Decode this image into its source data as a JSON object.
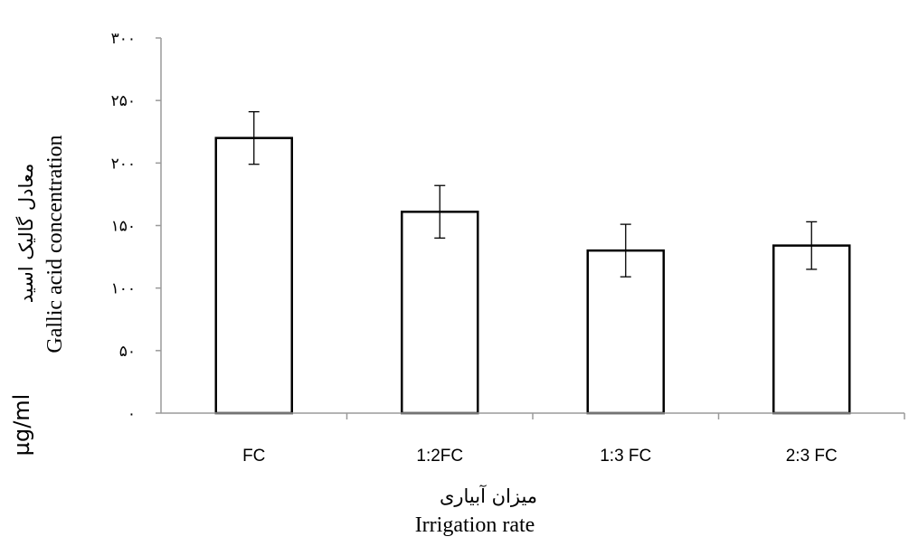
{
  "chart_data": {
    "type": "bar",
    "categories": [
      "FC",
      "1:2FC",
      "1:3 FC",
      "2:3 FC"
    ],
    "values": [
      220,
      161,
      130,
      134
    ],
    "error_bars": [
      21,
      21,
      21,
      19
    ],
    "ylim": [
      0,
      300
    ],
    "yticks": [
      0,
      50,
      100,
      150,
      200,
      250,
      300
    ],
    "ytick_labels": [
      "٠",
      "۵٠",
      "١٠٠",
      "١۵٠",
      "٢٠٠",
      "٢۵٠",
      "٣٠٠"
    ],
    "xlabel_fa": "میزان آبیاری",
    "xlabel_en": "Irrigation rate",
    "ylabel_fa": "معادل گالیک اسید",
    "ylabel_en": "Gallic acid concentration",
    "ylabel_unit": "µg/ml",
    "grid": false,
    "legend": "none",
    "bar_fill": "#ffffff",
    "bar_stroke": "#000000"
  }
}
